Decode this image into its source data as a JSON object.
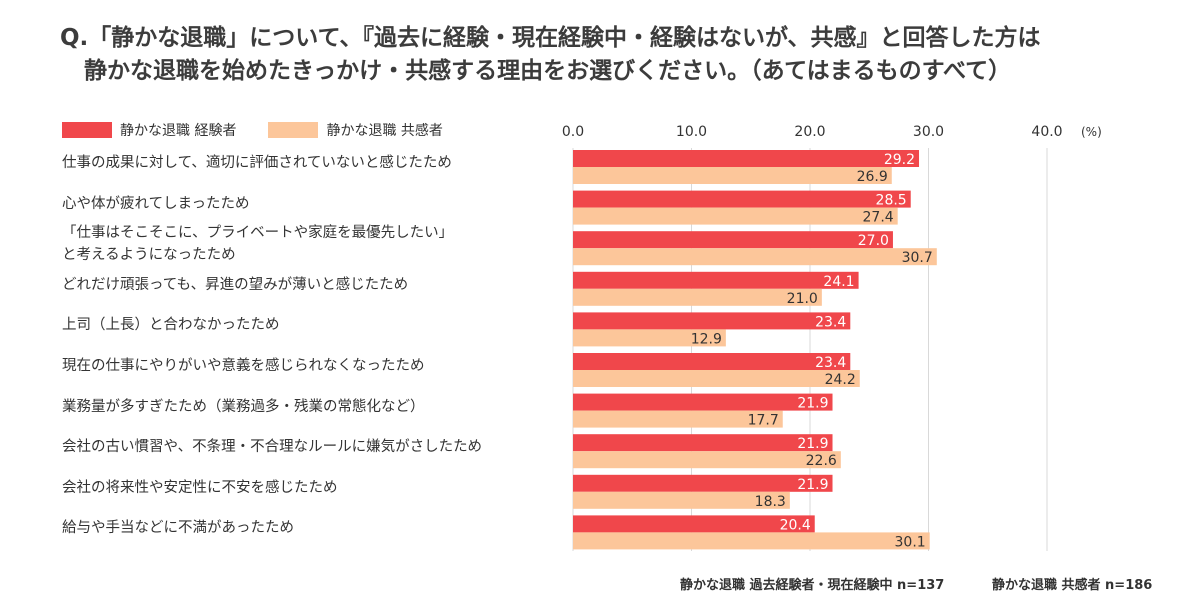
{
  "title": {
    "line1": "Q.「静かな退職」について、『過去に経験・現在経験中・経験はないが、共感』と回答した方は",
    "line2": "静かな退職を始めたきっかけ・共感する理由をお選びください。（あてはまるものすべて）"
  },
  "colors": {
    "experienced": "#f0474b",
    "sympathizer": "#fcc69a",
    "grid": "#d9d9d9"
  },
  "chart_data": {
    "type": "bar",
    "orientation": "horizontal",
    "unit": "(%)",
    "xlim": [
      0,
      40
    ],
    "ticks": [
      "0.0",
      "10.0",
      "20.0",
      "30.0",
      "40.0"
    ],
    "tick_values": [
      0,
      10,
      20,
      30,
      40
    ],
    "grid": true,
    "legend_position": "top-left",
    "categories": [
      "仕事の成果に対して、適切に評価されていないと感じたため",
      "心や体が疲れてしまったため",
      "「仕事はそこそこに、プライベートや家庭を最優先したい」\nと考えるようになったため",
      "どれだけ頑張っても、昇進の望みが薄いと感じたため",
      "上司（上長）と合わなかったため",
      "現在の仕事にやりがいや意義を感じられなくなったため",
      "業務量が多すぎたため（業務過多・残業の常態化など）",
      "会社の古い慣習や、不条理・不合理なルールに嫌気がさしたため",
      "会社の将来性や安定性に不安を感じたため",
      "給与や手当などに不満があったため"
    ],
    "series": [
      {
        "name": "静かな退職 経験者",
        "values": [
          29.2,
          28.5,
          27.0,
          24.1,
          23.4,
          23.4,
          21.9,
          21.9,
          21.9,
          20.4
        ]
      },
      {
        "name": "静かな退職 共感者",
        "values": [
          26.9,
          27.4,
          30.7,
          21.0,
          12.9,
          24.2,
          17.7,
          22.6,
          18.3,
          30.1
        ]
      }
    ]
  },
  "footnotes": {
    "experienced": "静かな退職 過去経験者・現在経験中 n=137",
    "sympathizer": "静かな退職 共感者 n=186"
  }
}
